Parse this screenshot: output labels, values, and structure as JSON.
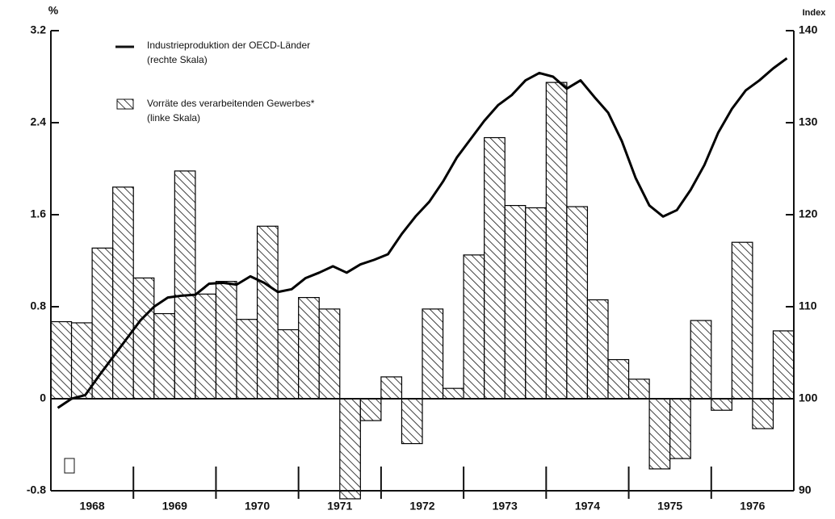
{
  "chart_data": {
    "type": "bar-line",
    "y_label": "%",
    "y2_label": "Index",
    "years": [
      "1968",
      "1969",
      "1970",
      "1971",
      "1972",
      "1973",
      "1974",
      "1975",
      "1976"
    ],
    "ylim": [
      -0.8,
      3.2
    ],
    "yticks": [
      -0.8,
      0,
      0.8,
      1.6,
      2.4,
      3.2
    ],
    "y2lim": [
      90,
      140
    ],
    "y2ticks": [
      90,
      100,
      110,
      120,
      130,
      140
    ],
    "series": [
      {
        "name": "Industrieproduktion der OECD-Länder",
        "note": "(rechte Skala)",
        "kind": "line",
        "axis": "y2",
        "color": "#000000",
        "values": [
          99,
          100,
          100.4,
          102.5,
          104.5,
          106.5,
          108.5,
          110,
          111,
          111.2,
          111.3,
          112.5,
          112.6,
          112.4,
          113.3,
          112.6,
          111.6,
          111.9,
          113.1,
          113.7,
          114.4,
          113.7,
          114.6,
          115.1,
          115.7,
          117.9,
          119.8,
          121.4,
          123.6,
          126.2,
          128.2,
          130.2,
          131.9,
          133,
          134.6,
          135.4,
          135,
          133.7,
          134.6,
          132.8,
          131.1,
          128,
          124,
          121,
          119.8,
          120.5,
          122.7,
          125.4,
          128.9,
          131.5,
          133.5,
          134.6,
          135.9,
          137
        ]
      },
      {
        "name": "Vorräte des verarbeitenden Gewerbes*",
        "note": "(linke Skala)",
        "kind": "bar",
        "axis": "y",
        "color": "#000000",
        "values": [
          0.67,
          0.66,
          1.31,
          1.84,
          1.05,
          0.74,
          1.98,
          0.91,
          1.02,
          0.69,
          1.5,
          0.6,
          0.88,
          0.78,
          -0.87,
          -0.19,
          0.19,
          -0.39,
          0.78,
          0.09,
          1.25,
          2.27,
          1.68,
          1.66,
          2.75,
          1.67,
          0.86,
          0.34,
          0.17,
          -0.61,
          -0.52,
          0.68,
          -0.1,
          1.36,
          -0.26,
          0.59
        ]
      }
    ]
  }
}
